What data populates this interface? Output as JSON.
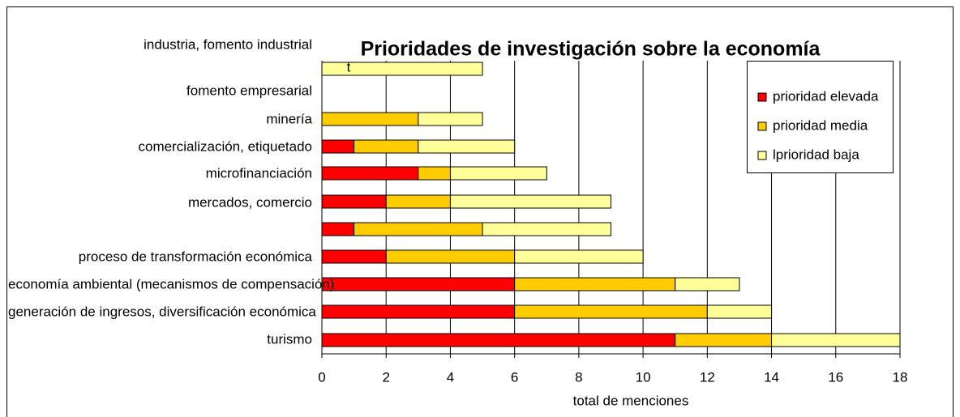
{
  "chart_data": {
    "type": "stacked-bar-horizontal",
    "title": "Prioridades de investigación sobre la economía",
    "x_label": "total de menciones",
    "annotation": "t",
    "categories": [
      "industria, fomento industrial",
      "fomento empresarial",
      "minería",
      "comercialización, etiquetado",
      "microfinanciación",
      "mercados, comercio",
      "proceso de transformación económica",
      "economía ambiental (mecanismos de compensación)",
      "generación de ingresos, diversificación económica",
      "turismo"
    ],
    "series": [
      {
        "name": "prioridad elevada",
        "color": "#ff0000",
        "values": [
          0,
          0,
          1,
          3,
          2,
          1,
          2,
          6,
          6,
          11
        ]
      },
      {
        "name": "prioridad media",
        "color": "#ffcc00",
        "values": [
          0,
          3,
          2,
          1,
          2,
          4,
          4,
          5,
          6,
          3
        ]
      },
      {
        "name": "lprioridad baja",
        "color": "#ffff99",
        "values": [
          5,
          2,
          3,
          3,
          5,
          4,
          4,
          2,
          2,
          4
        ]
      }
    ],
    "xlim": [
      0,
      18
    ],
    "xticks": [
      0,
      2,
      4,
      6,
      8,
      10,
      12,
      14,
      16,
      18
    ],
    "grid": true,
    "legend": "top-right"
  }
}
